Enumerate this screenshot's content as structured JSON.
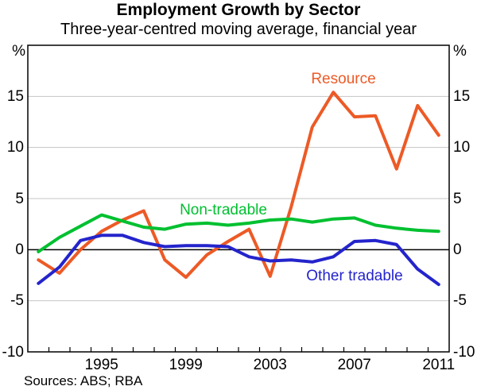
{
  "chart_data": {
    "type": "line",
    "title": "Employment Growth by Sector",
    "subtitle": "Three-year-centred moving average, financial year",
    "unit_left": "%",
    "unit_right": "%",
    "ylim": [
      -10,
      20
    ],
    "grid_step": 5,
    "y_tick_labels": [
      15,
      10,
      5,
      0,
      -5,
      -10
    ],
    "xlim": [
      1991.5,
      2011.5
    ],
    "x_boundary_ticks": {
      "start": 1992.5,
      "end": 2010.5,
      "step": 1
    },
    "x_axis_labels": [
      1995,
      1999,
      2003,
      2007,
      2011
    ],
    "x": [
      1992,
      1993,
      1994,
      1995,
      1996,
      1997,
      1998,
      1999,
      2000,
      2001,
      2002,
      2003,
      2004,
      2005,
      2006,
      2007,
      2008,
      2009,
      2010,
      2011
    ],
    "series": [
      {
        "name": "Resource",
        "color": "#ED5A26",
        "values": [
          -1.0,
          -2.3,
          0.0,
          1.8,
          2.9,
          3.8,
          -1.0,
          -2.7,
          -0.5,
          0.8,
          2.0,
          -2.6,
          4.2,
          12.0,
          15.4,
          13.0,
          13.1,
          7.9,
          14.1,
          11.2
        ]
      },
      {
        "name": "Non-tradable",
        "color": "#00C030",
        "values": [
          -0.2,
          1.2,
          2.3,
          3.4,
          2.8,
          2.2,
          2.0,
          2.5,
          2.6,
          2.4,
          2.6,
          2.9,
          3.0,
          2.7,
          3.0,
          3.1,
          2.4,
          2.1,
          1.9,
          1.8
        ]
      },
      {
        "name": "Other tradable",
        "color": "#2424CC",
        "values": [
          -3.3,
          -1.7,
          0.9,
          1.4,
          1.4,
          0.7,
          0.3,
          0.4,
          0.4,
          0.3,
          -0.7,
          -1.1,
          -1.0,
          -1.2,
          -0.7,
          0.8,
          0.9,
          0.5,
          -1.9,
          -3.4
        ]
      }
    ],
    "annotations": [
      {
        "series": 0,
        "text": "Resource"
      },
      {
        "series": 1,
        "text": "Non-tradable"
      },
      {
        "series": 2,
        "text": "Other tradable"
      }
    ],
    "grid": "horizontal-only",
    "legend_position": "inline-annotations"
  },
  "footer": {
    "sources": "Sources: ABS; RBA"
  }
}
